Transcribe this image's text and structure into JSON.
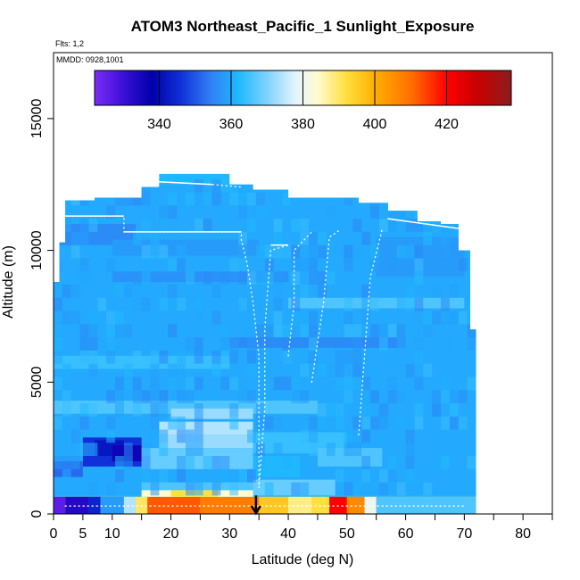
{
  "chart_data": {
    "type": "heatmap",
    "title": "ATOM3 Northeast_Pacific_1 Sunlight_Exposure",
    "flights_label": "Flts: 1,2",
    "date_label": "MMDD: 0928,1001",
    "xlabel": "Latitude (deg N)",
    "ylabel": "Altitude (m)",
    "xlim": [
      0,
      85
    ],
    "ylim": [
      0,
      17500
    ],
    "x_ticks": [
      0,
      5,
      10,
      20,
      30,
      40,
      50,
      60,
      70,
      80
    ],
    "x_tick_labels": [
      "0",
      "5",
      "10",
      "20",
      "30",
      "40",
      "50",
      "60",
      "70",
      "80"
    ],
    "x_minor_ticks": [
      15,
      25,
      35,
      45,
      55,
      65,
      75,
      85
    ],
    "y_ticks": [
      0,
      5000,
      10000,
      15000
    ],
    "y_tick_labels": [
      "0",
      "5000",
      "10000",
      "15000"
    ],
    "colorbar": {
      "min": 322,
      "max": 438,
      "ticks": [
        340,
        360,
        380,
        400,
        420
      ],
      "tick_labels": [
        "340",
        "360",
        "380",
        "400",
        "420"
      ],
      "stops": [
        {
          "v": 322,
          "c": "#7b2cf5"
        },
        {
          "v": 330,
          "c": "#3a10d8"
        },
        {
          "v": 338,
          "c": "#0000aa"
        },
        {
          "v": 346,
          "c": "#1030d8"
        },
        {
          "v": 354,
          "c": "#2f7df5"
        },
        {
          "v": 362,
          "c": "#1fb8ff"
        },
        {
          "v": 370,
          "c": "#7fd2ff"
        },
        {
          "v": 378,
          "c": "#e4f4ff"
        },
        {
          "v": 384,
          "c": "#fffbd0"
        },
        {
          "v": 392,
          "c": "#ffe040"
        },
        {
          "v": 400,
          "c": "#ffb000"
        },
        {
          "v": 410,
          "c": "#ff7000"
        },
        {
          "v": 420,
          "c": "#ff0000"
        },
        {
          "v": 428,
          "c": "#cc0000"
        },
        {
          "v": 438,
          "c": "#8e1b1b"
        }
      ]
    },
    "envelope": {
      "lat_edges": [
        0,
        1,
        2,
        7,
        10,
        15,
        18,
        30,
        34,
        40,
        46,
        52,
        57,
        62,
        66,
        69,
        71,
        72
      ],
      "top_alt": [
        8800,
        10300,
        11900,
        12000,
        12000,
        12400,
        12900,
        12500,
        12300,
        12000,
        12000,
        11800,
        11500,
        11100,
        11000,
        10000,
        7000,
        5000
      ]
    },
    "background_value": 362,
    "bands": [
      {
        "lat": [
          0,
          72
        ],
        "alt": [
          700,
          12500
        ],
        "v": 360
      },
      {
        "lat": [
          0,
          45
        ],
        "alt": [
          3800,
          4300
        ],
        "v": 366
      },
      {
        "lat": [
          0,
          30
        ],
        "alt": [
          5500,
          6000
        ],
        "v": 364
      },
      {
        "lat": [
          30,
          60
        ],
        "alt": [
          6300,
          6700
        ],
        "v": 356
      },
      {
        "lat": [
          40,
          70
        ],
        "alt": [
          7800,
          8200
        ],
        "v": 366
      },
      {
        "lat": [
          10,
          40
        ],
        "alt": [
          8800,
          9200
        ],
        "v": 357
      },
      {
        "lat": [
          0,
          14
        ],
        "alt": [
          10200,
          11000
        ],
        "v": 356
      },
      {
        "lat": [
          10,
          35
        ],
        "alt": [
          9800,
          10400
        ],
        "v": 358
      },
      {
        "lat": [
          55,
          70
        ],
        "alt": [
          9000,
          10500
        ],
        "v": 358
      },
      {
        "lat": [
          5,
          15
        ],
        "alt": [
          1800,
          2900
        ],
        "v": 346
      },
      {
        "lat": [
          7,
          12
        ],
        "alt": [
          2200,
          2800
        ],
        "v": 342
      },
      {
        "lat": [
          10,
          15
        ],
        "alt": [
          2000,
          2600
        ],
        "v": 336
      },
      {
        "lat": [
          0,
          5
        ],
        "alt": [
          1400,
          2000
        ],
        "v": 352
      },
      {
        "lat": [
          18,
          34
        ],
        "alt": [
          3000,
          3500
        ],
        "v": 374
      },
      {
        "lat": [
          18,
          34
        ],
        "alt": [
          2500,
          3000
        ],
        "v": 372
      },
      {
        "lat": [
          15,
          34
        ],
        "alt": [
          1700,
          2500
        ],
        "v": 368
      },
      {
        "lat": [
          20,
          34
        ],
        "alt": [
          3600,
          4000
        ],
        "v": 372
      },
      {
        "lat": [
          34,
          50
        ],
        "alt": [
          2300,
          3100
        ],
        "v": 364
      },
      {
        "lat": [
          34,
          48
        ],
        "alt": [
          700,
          1300
        ],
        "v": 368
      },
      {
        "lat": [
          34,
          42
        ],
        "alt": [
          1400,
          2200
        ],
        "v": 362
      },
      {
        "lat": [
          45,
          56
        ],
        "alt": [
          1800,
          2500
        ],
        "v": 366
      },
      {
        "lat": [
          15,
          34
        ],
        "alt": [
          650,
          1200
        ],
        "v": 366
      },
      {
        "lat": [
          0,
          72
        ],
        "alt": [
          0,
          650
        ],
        "v": 402
      },
      {
        "lat": [
          0,
          2
        ],
        "alt": [
          0,
          650
        ],
        "v": 326
      },
      {
        "lat": [
          2,
          6
        ],
        "alt": [
          0,
          650
        ],
        "v": 333
      },
      {
        "lat": [
          6,
          8
        ],
        "alt": [
          0,
          650
        ],
        "v": 344
      },
      {
        "lat": [
          8,
          12
        ],
        "alt": [
          0,
          650
        ],
        "v": 358
      },
      {
        "lat": [
          12,
          14
        ],
        "alt": [
          0,
          650
        ],
        "v": 374
      },
      {
        "lat": [
          14,
          16
        ],
        "alt": [
          0,
          650
        ],
        "v": 390
      },
      {
        "lat": [
          16,
          25
        ],
        "alt": [
          0,
          650
        ],
        "v": 412
      },
      {
        "lat": [
          25,
          35
        ],
        "alt": [
          0,
          650
        ],
        "v": 408
      },
      {
        "lat": [
          35,
          40
        ],
        "alt": [
          0,
          650
        ],
        "v": 396
      },
      {
        "lat": [
          40,
          44
        ],
        "alt": [
          0,
          650
        ],
        "v": 388
      },
      {
        "lat": [
          44,
          47
        ],
        "alt": [
          0,
          650
        ],
        "v": 392
      },
      {
        "lat": [
          47,
          50
        ],
        "alt": [
          0,
          650
        ],
        "v": 420
      },
      {
        "lat": [
          50,
          53
        ],
        "alt": [
          0,
          650
        ],
        "v": 406
      },
      {
        "lat": [
          53,
          55
        ],
        "alt": [
          0,
          650
        ],
        "v": 380
      },
      {
        "lat": [
          55,
          72
        ],
        "alt": [
          0,
          650
        ],
        "v": 366
      },
      {
        "lat": [
          15,
          34
        ],
        "alt": [
          650,
          900
        ],
        "v": 384
      },
      {
        "lat": [
          20,
          28
        ],
        "alt": [
          650,
          900
        ],
        "v": 392
      }
    ],
    "flight_tracks": [
      [
        [
          1,
          11300
        ],
        [
          12,
          11300
        ],
        [
          12,
          10700
        ],
        [
          32,
          10700
        ],
        [
          32,
          10400
        ],
        [
          33,
          9500
        ],
        [
          34,
          8000
        ],
        [
          35,
          6000
        ],
        [
          35,
          4000
        ],
        [
          35,
          1000
        ]
      ],
      [
        [
          15,
          12500
        ],
        [
          18,
          12600
        ],
        [
          27,
          12500
        ],
        [
          32,
          12400
        ]
      ],
      [
        [
          35,
          1000
        ],
        [
          36,
          4000
        ],
        [
          36,
          7000
        ],
        [
          37,
          10000
        ],
        [
          40,
          10200
        ]
      ],
      [
        [
          40,
          6000
        ],
        [
          41,
          8000
        ],
        [
          41,
          10000
        ],
        [
          44,
          10700
        ]
      ],
      [
        [
          44,
          5000
        ],
        [
          46,
          8000
        ],
        [
          47,
          10500
        ],
        [
          49,
          10800
        ]
      ],
      [
        [
          52,
          3000
        ],
        [
          53,
          6000
        ],
        [
          54,
          9000
        ],
        [
          56,
          10800
        ]
      ],
      [
        [
          57,
          11200
        ],
        [
          70,
          10800
        ]
      ],
      [
        [
          2,
          300
        ],
        [
          12,
          300
        ],
        [
          35,
          300
        ],
        [
          55,
          300
        ],
        [
          70,
          300
        ]
      ]
    ],
    "arrow": {
      "lat": 34.5,
      "alt_from": 700,
      "alt_to": 0
    }
  }
}
